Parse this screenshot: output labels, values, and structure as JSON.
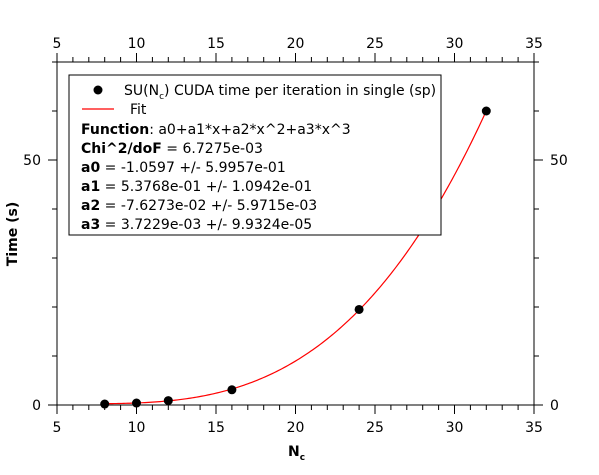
{
  "chart_data": {
    "type": "scatter",
    "xlabel_main": "N",
    "xlabel_sub": "c",
    "ylabel": "Time (s)",
    "xlim": [
      5,
      35
    ],
    "ylim": [
      0,
      70
    ],
    "x_ticks": [
      5,
      10,
      15,
      20,
      25,
      30,
      35
    ],
    "y_ticks": [
      0,
      50
    ],
    "grid": false,
    "legend_position": "top-left",
    "series": [
      {
        "name": "SU(N_c) CUDA time per iteration in single (sp)",
        "kind": "points",
        "color": "#000000",
        "x": [
          8,
          10,
          12,
          16,
          24,
          32
        ],
        "y": [
          0.2,
          0.4,
          0.9,
          3.1,
          19.5,
          60.0
        ]
      },
      {
        "name": "Fit",
        "kind": "curve",
        "color": "#ff0000",
        "coefficients": [
          -1.0597,
          0.53768,
          -0.076273,
          0.0037229
        ],
        "x_range": [
          8,
          32
        ]
      }
    ],
    "legend": {
      "scatter_label_pre": "SU(N",
      "scatter_label_sub": "c",
      "scatter_label_post": ") CUDA time per iteration in single (sp)",
      "fit_label": "Fit",
      "lines": [
        {
          "key": "Function",
          "value": ": a0+a1*x+a2*x^2+a3*x^3"
        },
        {
          "key": "Chi^2/doF",
          "value": " = 6.7275e-03"
        },
        {
          "key": "a0",
          "value": " = -1.0597 +/- 5.9957e-01"
        },
        {
          "key": "a1",
          "value": " = 5.3768e-01 +/- 1.0942e-01"
        },
        {
          "key": "a2",
          "value": " = -7.6273e-02 +/- 5.9715e-03"
        },
        {
          "key": "a3",
          "value": " = 3.7229e-03 +/- 9.9324e-05"
        }
      ]
    }
  }
}
